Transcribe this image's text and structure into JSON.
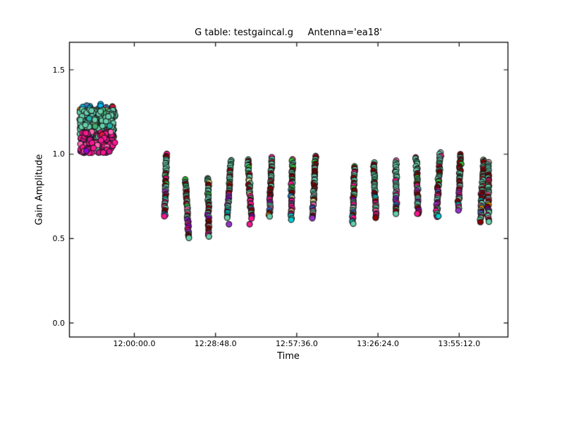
{
  "figure": {
    "background": "#ffffff",
    "frame_color": "#000000"
  },
  "chart_data": {
    "type": "scatter",
    "title": "G table: testgaincal.g     Antenna='ea18'",
    "xlabel": "Time",
    "ylabel": "Gain Amplitude",
    "legend": "none",
    "grid": false,
    "x_axis": {
      "min": "11:37:00",
      "max": "14:12:30",
      "ticks": [
        "12:00:00.0",
        "12:28:48.0",
        "12:57:36.0",
        "13:26:24.0",
        "13:55:12.0"
      ],
      "tick_direction": "in"
    },
    "y_axis": {
      "min": -0.083,
      "max": 1.663,
      "ticks": [
        "0.0",
        "0.5",
        "1.0",
        "1.5"
      ]
    },
    "marker": {
      "radius": 4,
      "edge_color": "#161616"
    },
    "palettes": {
      "stripe_upper": [
        [
          "#66CDAA",
          50
        ],
        [
          "#8B0000",
          30
        ],
        [
          "#2E8B57",
          5
        ],
        [
          "#32CD32",
          4
        ],
        [
          "#B22222",
          4
        ],
        [
          "#FF1493",
          3
        ],
        [
          "#FF69B4",
          2
        ],
        [
          "#F0E68C",
          1
        ],
        [
          "#87CEEB",
          1
        ]
      ],
      "stripe_lower": [
        [
          "#66CDAA",
          26
        ],
        [
          "#8B0000",
          20
        ],
        [
          "#FF1493",
          17
        ],
        [
          "#9932CC",
          8
        ],
        [
          "#00CED1",
          6
        ],
        [
          "#FF69B4",
          5
        ],
        [
          "#9400D3",
          4
        ],
        [
          "#F0E68C",
          3
        ],
        [
          "#FF8C00",
          3
        ],
        [
          "#8FBC8F",
          3
        ],
        [
          "#4169E1",
          2
        ],
        [
          "#A9A9A9",
          1
        ],
        [
          "#FA8072",
          1
        ],
        [
          "#1E90FF",
          1
        ]
      ],
      "stripe_top_accent": [
        [
          "#FFB6C1",
          3
        ],
        [
          "#ADD8E6",
          2
        ],
        [
          "#FA8072",
          2
        ],
        [
          "#B8860B",
          2
        ],
        [
          "#FF1493",
          3
        ],
        [
          "#00CED1",
          2
        ],
        [
          "#8FBC8F",
          2
        ]
      ],
      "blob_top_fringe": [
        [
          "#1E90FF",
          3
        ],
        [
          "#00BFFF",
          2
        ],
        [
          "#FF8C00",
          2
        ],
        [
          "#87CEEB",
          2
        ],
        [
          "#9ACD32",
          2
        ],
        [
          "#DC143C",
          2
        ],
        [
          "#A9A9A9",
          1
        ],
        [
          "#FFD700",
          1
        ],
        [
          "#FF69B4",
          2
        ],
        [
          "#66CDAA",
          3
        ],
        [
          "#4682B4",
          1
        ],
        [
          "#32CD32",
          1
        ]
      ],
      "blob_teal_mass": [
        [
          "#66CDAA",
          80
        ],
        [
          "#3CB371",
          12
        ],
        [
          "#20B2AA",
          5
        ],
        [
          "#8FBC8F",
          3
        ]
      ],
      "blob_pink_band": [
        [
          "#FF1493",
          55
        ],
        [
          "#FF69B4",
          14
        ],
        [
          "#C71585",
          16
        ],
        [
          "#DC143C",
          6
        ],
        [
          "#9400D3",
          5
        ],
        [
          "#66CDAA",
          4
        ]
      ]
    },
    "blob": {
      "time_center": "11:46:50",
      "time_halfwidth_sec": 375,
      "amp_range_total": [
        1.0,
        1.3
      ],
      "layers": [
        {
          "name": "top-fringe",
          "amp_range": [
            1.21,
            1.295
          ],
          "n": 48,
          "palette": "blob_top_fringe"
        },
        {
          "name": "teal-mass",
          "amp_range": [
            1.1,
            1.265
          ],
          "n": 230,
          "palette": "blob_teal_mass"
        },
        {
          "name": "pink-band",
          "amp_range": [
            1.005,
            1.135
          ],
          "n": 125,
          "palette": "blob_pink_band"
        }
      ]
    },
    "stripes": [
      {
        "time": "12:11:04",
        "amp_range": [
          0.63,
          1.0
        ]
      },
      {
        "time": "12:18:45",
        "amp_range": [
          0.5,
          0.85
        ]
      },
      {
        "time": "12:26:15",
        "amp_range": [
          0.51,
          0.86
        ]
      },
      {
        "time": "12:33:34",
        "amp_range": [
          0.62,
          0.96
        ]
      },
      {
        "time": "12:40:54",
        "amp_range": [
          0.62,
          0.97
        ]
      },
      {
        "time": "12:48:20",
        "amp_range": [
          0.63,
          0.98
        ]
      },
      {
        "time": "12:55:50",
        "amp_range": [
          0.61,
          0.97
        ]
      },
      {
        "time": "13:03:45",
        "amp_range": [
          0.62,
          0.99
        ]
      },
      {
        "time": "13:17:48",
        "amp_range": [
          0.59,
          0.93
        ]
      },
      {
        "time": "13:25:20",
        "amp_range": [
          0.62,
          0.95
        ]
      },
      {
        "time": "13:32:50",
        "amp_range": [
          0.65,
          0.96
        ]
      },
      {
        "time": "13:40:20",
        "amp_range": [
          0.65,
          0.98
        ]
      },
      {
        "time": "13:47:50",
        "amp_range": [
          0.63,
          1.01
        ]
      },
      {
        "time": "13:55:20",
        "amp_range": [
          0.67,
          1.0
        ]
      },
      {
        "time": "14:03:20",
        "amp_range": [
          0.6,
          0.97
        ]
      },
      {
        "time": "14:05:35",
        "amp_range": [
          0.6,
          0.95
        ]
      }
    ],
    "outliers": [
      {
        "time": "11:43:00",
        "amp": 1.02,
        "color": "#9400D3"
      },
      {
        "time": "11:49:00",
        "amp": 1.01,
        "color": "#FF1493"
      },
      {
        "time": "12:33:34",
        "amp": 0.585,
        "color": "#9932CC"
      },
      {
        "time": "12:40:54",
        "amp": 0.585,
        "color": "#FF1493"
      },
      {
        "time": "13:40:20",
        "amp": 0.648,
        "color": "#FF1493"
      },
      {
        "time": "13:47:50",
        "amp": 0.633,
        "color": "#00CED1"
      }
    ]
  }
}
